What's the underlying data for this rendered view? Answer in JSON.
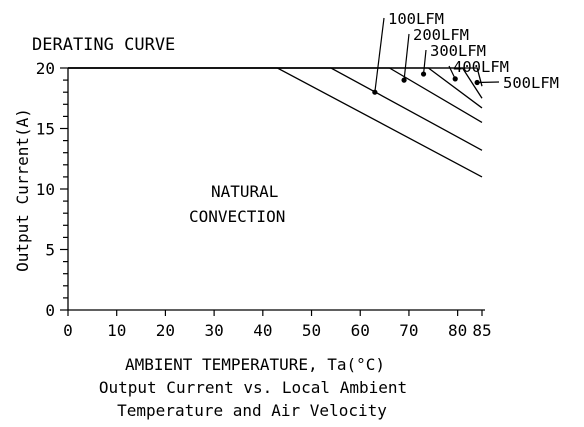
{
  "chart_data": {
    "type": "line",
    "title": "DERATING CURVE",
    "xlabel": "AMBIENT TEMPERATURE, Ta(°C)",
    "ylabel": "Output Current(A)",
    "caption_line1": "Output Current vs. Local Ambient",
    "caption_line2": "Temperature and Air Velocity",
    "xlim": [
      0,
      85
    ],
    "ylim": [
      0,
      20
    ],
    "x_ticks": [
      0,
      10,
      20,
      30,
      40,
      50,
      60,
      70,
      80,
      85
    ],
    "y_ticks": [
      0,
      5,
      10,
      15,
      20
    ],
    "grid": false,
    "series": [
      {
        "name": "NATURAL CONVECTION",
        "x": [
          0,
          43,
          85
        ],
        "y": [
          20,
          20,
          11
        ]
      },
      {
        "name": "100LFM",
        "x": [
          0,
          54,
          85
        ],
        "y": [
          20,
          20,
          13.2
        ]
      },
      {
        "name": "200LFM",
        "x": [
          0,
          66,
          85
        ],
        "y": [
          20,
          20,
          15.5
        ]
      },
      {
        "name": "300LFM",
        "x": [
          0,
          74,
          85
        ],
        "y": [
          20,
          20,
          16.7
        ]
      },
      {
        "name": "400LFM",
        "x": [
          0,
          81,
          85
        ],
        "y": [
          20,
          20,
          17.5
        ]
      },
      {
        "name": "500LFM",
        "x": [
          0,
          84,
          85
        ],
        "y": [
          20,
          20,
          18.5
        ]
      }
    ],
    "region_label_line1": "NATURAL",
    "region_label_line2": "CONVECTION",
    "callouts": [
      {
        "label": "100LFM",
        "point_x": 63,
        "point_y": 18
      },
      {
        "label": "200LFM",
        "point_x": 69,
        "point_y": 19
      },
      {
        "label": "300LFM",
        "point_x": 73,
        "point_y": 19.5
      },
      {
        "label": "400LFM",
        "point_x": 79.5,
        "point_y": 19.1
      },
      {
        "label": "500LFM",
        "point_x": 84,
        "point_y": 18.8
      }
    ]
  }
}
